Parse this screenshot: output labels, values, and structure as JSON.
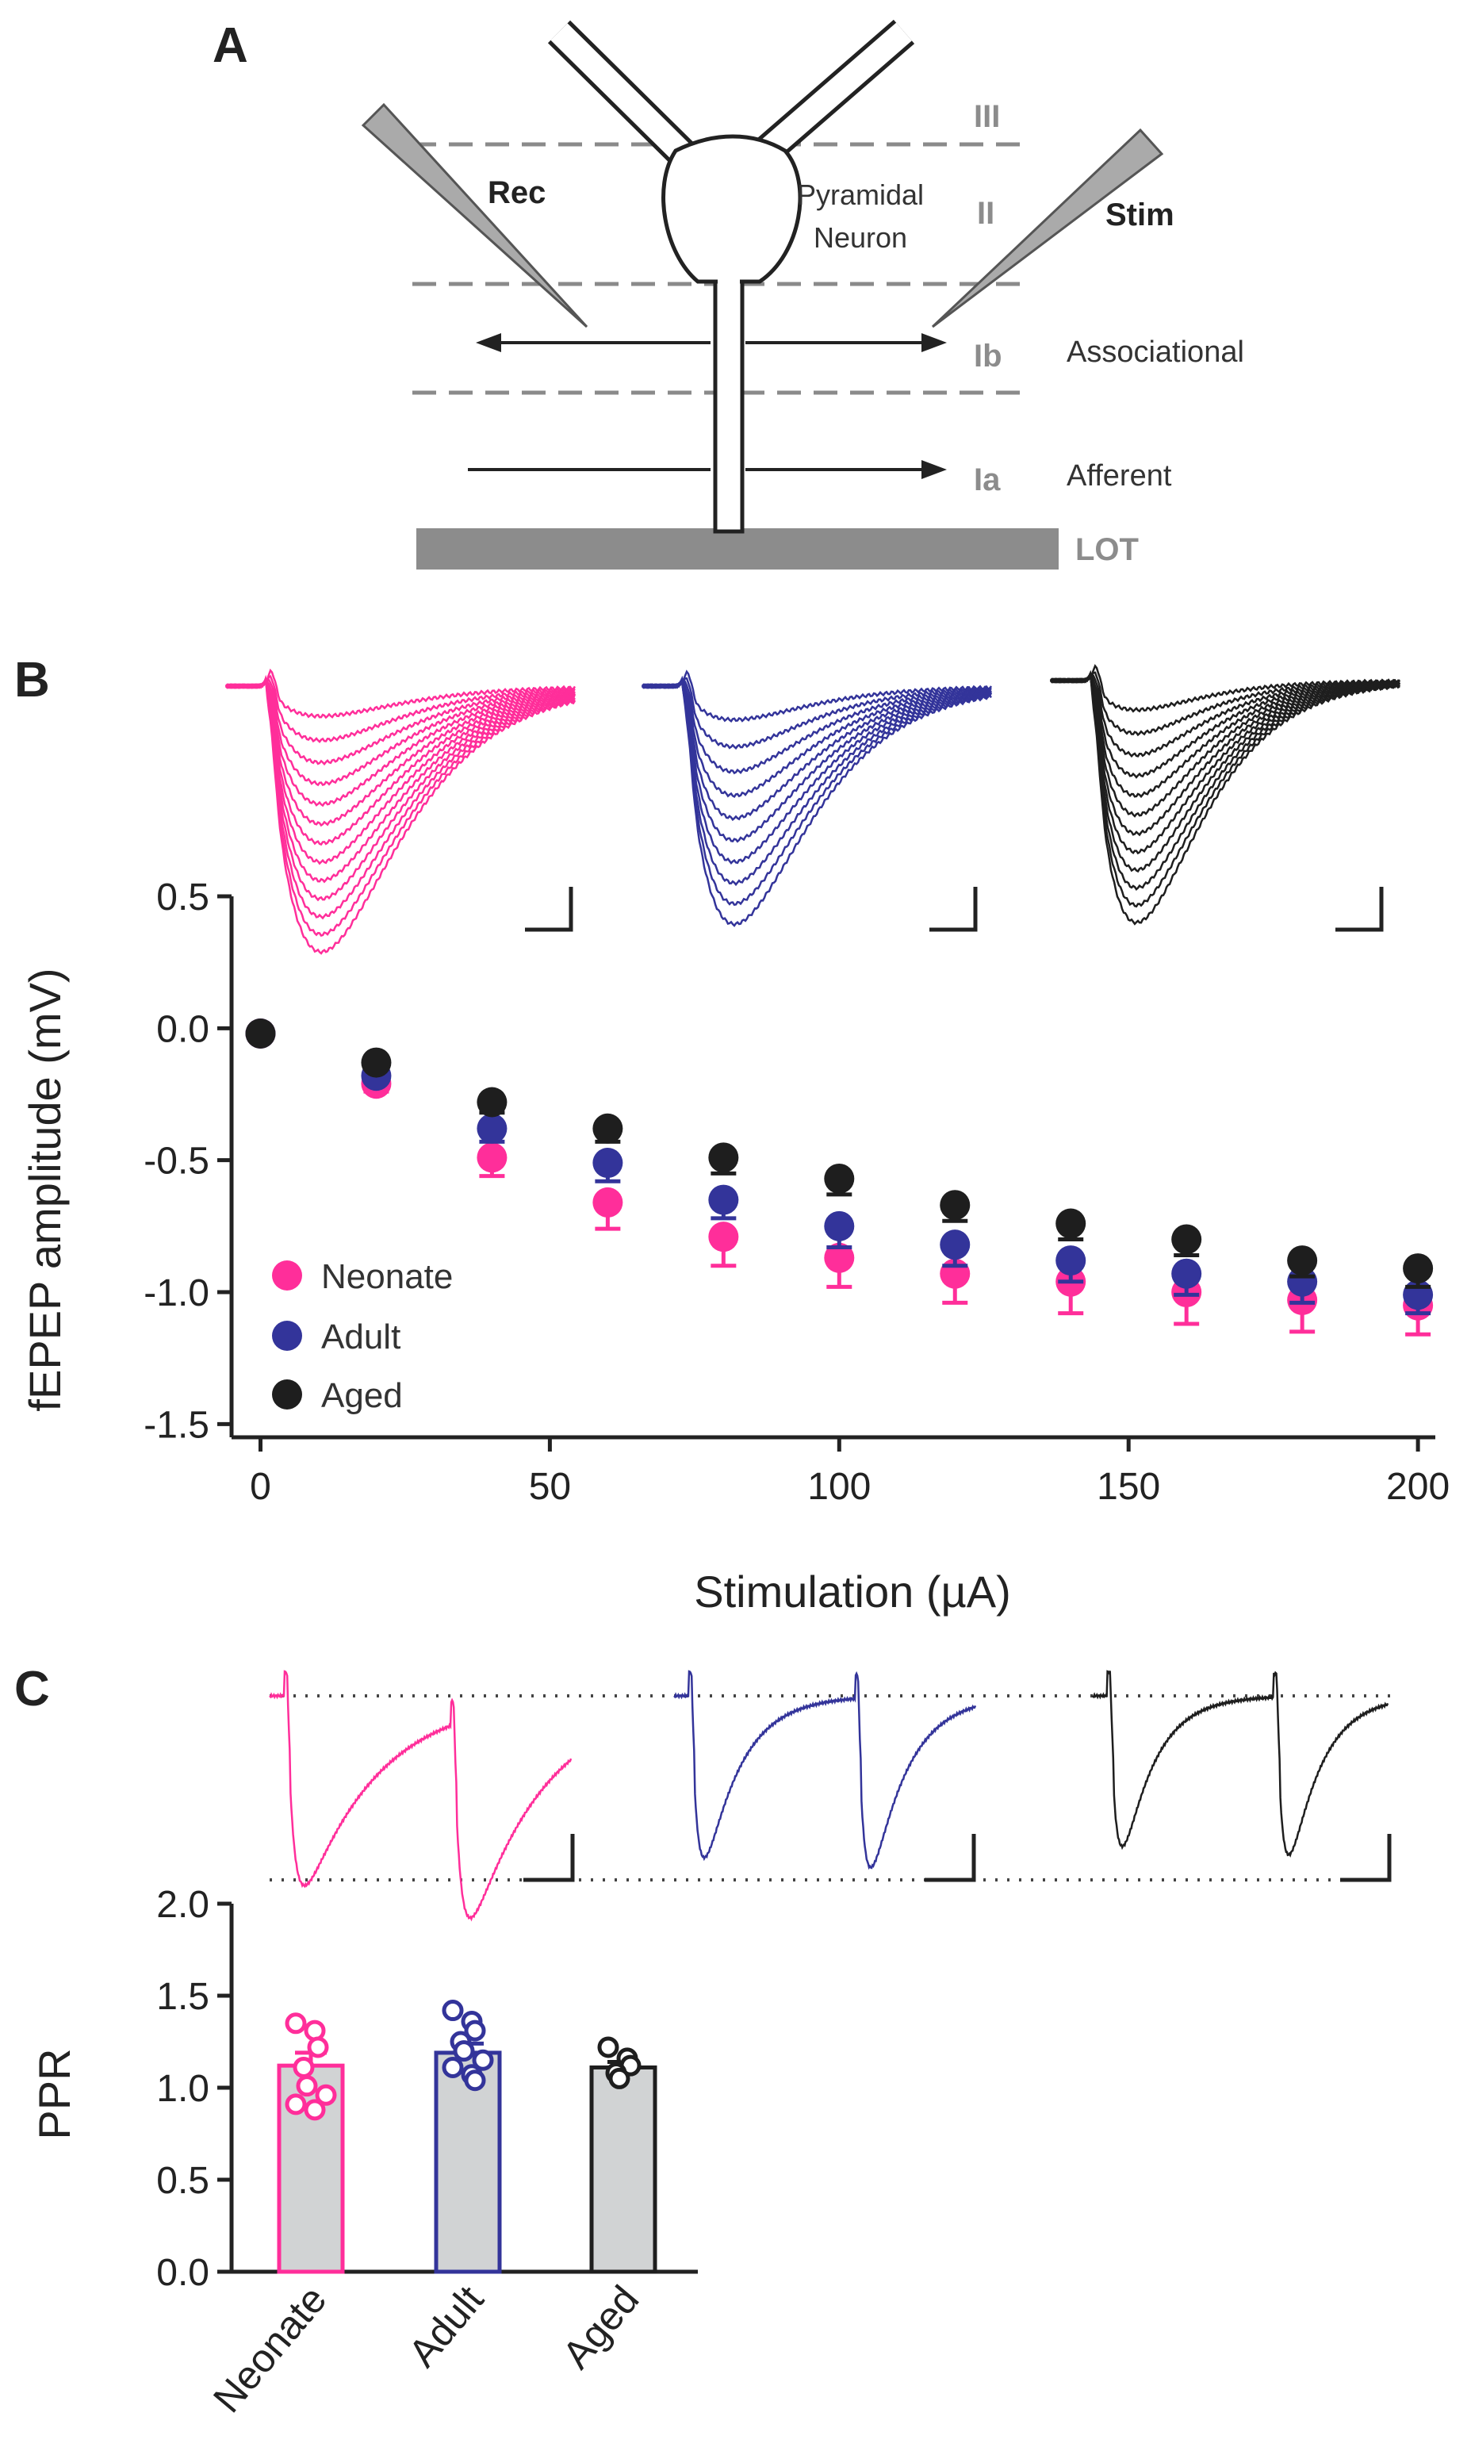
{
  "panel_a": {
    "label": "A",
    "layers": [
      "III",
      "II",
      "Ib",
      "Ia"
    ],
    "rec": "Rec",
    "stim": "Stim",
    "neuron_line1": "Pyramidal",
    "neuron_line2": "Neuron",
    "associational": "Associational",
    "afferent": "Afferent",
    "lot": "LOT"
  },
  "panel_b": {
    "label": "B"
  },
  "panel_c": {
    "label": "C"
  },
  "colors": {
    "neonate": "#ff2e9a",
    "adult": "#33349a",
    "aged": "#1e1e1e",
    "bar_fill": "#d1d3d4",
    "gray_text": "#8c8c8c"
  },
  "chart_data": [
    {
      "type": "scatter",
      "title": "",
      "xlabel": "Stimulation (µA)",
      "ylabel": "fEPEP amplitude (mV)",
      "xlim": [
        -5,
        203
      ],
      "ylim": [
        -1.55,
        0.5
      ],
      "xticks": [
        "0",
        "50",
        "100",
        "150",
        "200"
      ],
      "xtick_values": [
        0,
        50,
        100,
        150,
        200
      ],
      "yticks": [
        "0.5",
        "0.0",
        "-0.5",
        "-1.0",
        "-1.5"
      ],
      "ytick_values": [
        0.5,
        0.0,
        -0.5,
        -1.0,
        -1.5
      ],
      "legend": [
        "Neonate",
        "Adult",
        "Aged"
      ],
      "legend_position": "bottom-left",
      "series": [
        {
          "name": "Neonate",
          "x": [
            0,
            20,
            40,
            60,
            80,
            100,
            120,
            140,
            160,
            180,
            200
          ],
          "y": [
            -0.02,
            -0.21,
            -0.49,
            -0.66,
            -0.79,
            -0.87,
            -0.93,
            -0.96,
            -1.0,
            -1.03,
            -1.05
          ],
          "err": [
            0.01,
            0.03,
            0.07,
            0.1,
            0.11,
            0.11,
            0.11,
            0.12,
            0.12,
            0.12,
            0.11
          ]
        },
        {
          "name": "Adult",
          "x": [
            0,
            20,
            40,
            60,
            80,
            100,
            120,
            140,
            160,
            180,
            200
          ],
          "y": [
            -0.02,
            -0.18,
            -0.38,
            -0.51,
            -0.65,
            -0.75,
            -0.82,
            -0.88,
            -0.93,
            -0.96,
            -1.01
          ],
          "err": [
            0.01,
            0.02,
            0.05,
            0.07,
            0.07,
            0.08,
            0.08,
            0.08,
            0.08,
            0.08,
            0.07
          ]
        },
        {
          "name": "Aged",
          "x": [
            0,
            20,
            40,
            60,
            80,
            100,
            120,
            140,
            160,
            180,
            200
          ],
          "y": [
            -0.02,
            -0.13,
            -0.28,
            -0.38,
            -0.49,
            -0.57,
            -0.67,
            -0.74,
            -0.8,
            -0.88,
            -0.91
          ],
          "err": [
            0.01,
            0.02,
            0.04,
            0.05,
            0.06,
            0.06,
            0.06,
            0.06,
            0.06,
            0.06,
            0.07
          ]
        }
      ]
    },
    {
      "type": "bar",
      "title": "",
      "xlabel": "",
      "ylabel": "PPR",
      "ylim": [
        0,
        2.0
      ],
      "yticks": [
        "2.0",
        "1.5",
        "1.0",
        "0.5",
        "0.0"
      ],
      "ytick_values": [
        2.0,
        1.5,
        1.0,
        0.5,
        0.0
      ],
      "categories": [
        "Neonate",
        "Adult",
        "Aged"
      ],
      "values": [
        1.12,
        1.19,
        1.11
      ],
      "err": [
        0.07,
        0.05,
        0.03
      ],
      "points": [
        [
          1.35,
          1.31,
          1.22,
          1.11,
          1.01,
          0.96,
          0.91,
          0.88
        ],
        [
          1.42,
          1.36,
          1.31,
          1.25,
          1.2,
          1.15,
          1.11,
          1.07,
          1.04
        ],
        [
          1.22,
          1.16,
          1.12,
          1.08,
          1.05
        ]
      ]
    }
  ]
}
